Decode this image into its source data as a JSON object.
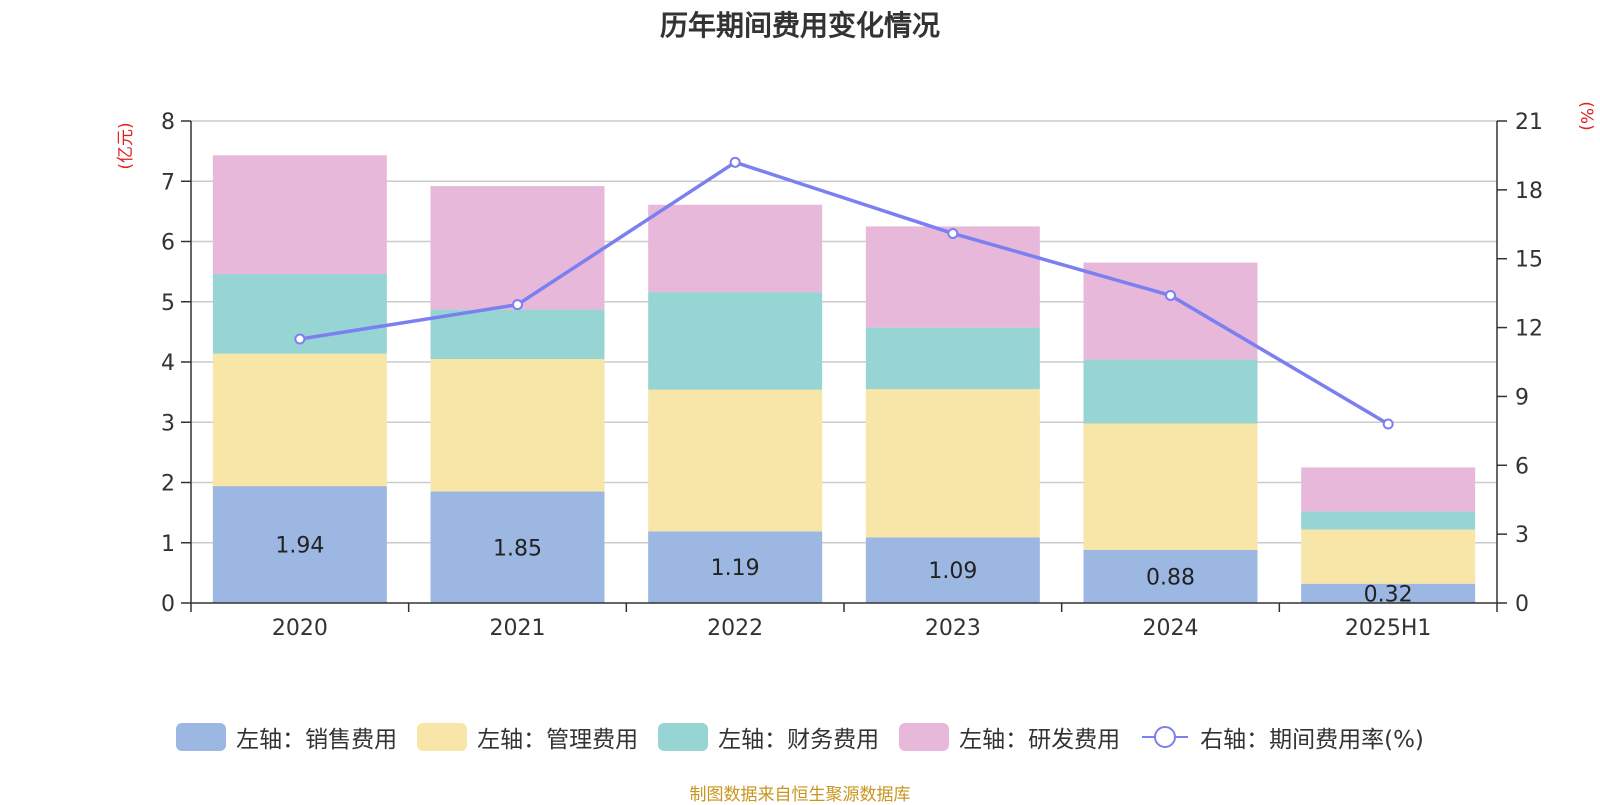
{
  "chart_data": {
    "type": "bar",
    "stacked": true,
    "title": "历年期间费用变化情况",
    "categories": [
      "2020",
      "2021",
      "2022",
      "2023",
      "2024",
      "2025H1"
    ],
    "left_axis": {
      "unit": "(亿元)",
      "range": [
        0,
        8
      ],
      "ticks": [
        "0",
        "1",
        "2",
        "3",
        "4",
        "5",
        "6",
        "7",
        "8"
      ]
    },
    "right_axis": {
      "unit": "(%)",
      "range": [
        0,
        21
      ],
      "ticks": [
        "0",
        "3",
        "6",
        "9",
        "12",
        "15",
        "18",
        "21"
      ]
    },
    "grid": true,
    "legend_position": "bottom",
    "series": [
      {
        "name": "左轴：销售费用",
        "axis": "left",
        "type": "bar",
        "color": "#9cb7e2",
        "values": [
          1.94,
          1.85,
          1.19,
          1.09,
          0.88,
          0.32
        ],
        "labels": [
          "1.94",
          "1.85",
          "1.19",
          "1.09",
          "0.88",
          "0.32"
        ]
      },
      {
        "name": "左轴：管理费用",
        "axis": "left",
        "type": "bar",
        "color": "#f7e6a7",
        "values": [
          2.2,
          2.2,
          2.35,
          2.46,
          2.1,
          0.9
        ]
      },
      {
        "name": "左轴：财务费用",
        "axis": "left",
        "type": "bar",
        "color": "#97d4d4",
        "values": [
          1.32,
          0.82,
          1.62,
          1.02,
          1.06,
          0.3
        ]
      },
      {
        "name": "左轴：研发费用",
        "axis": "left",
        "type": "bar",
        "color": "#e7b8d9",
        "values": [
          1.97,
          2.05,
          1.45,
          1.68,
          1.61,
          0.73
        ]
      },
      {
        "name": "右轴：期间费用率(%)",
        "axis": "right",
        "type": "line",
        "color": "#7b7ff0",
        "values": [
          11.5,
          13.0,
          19.2,
          16.1,
          13.4,
          7.8
        ]
      }
    ],
    "source_note": "制图数据来自恒生聚源数据库"
  }
}
